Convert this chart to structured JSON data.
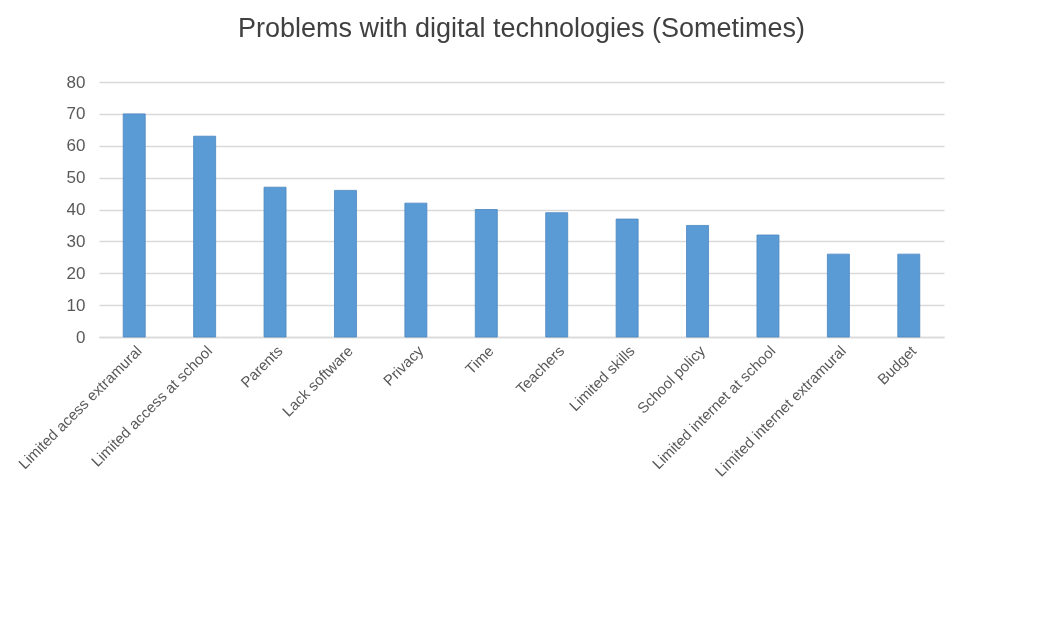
{
  "chart_data": {
    "type": "bar",
    "title": "Problems with digital technologies (Sometimes)",
    "categories": [
      "Limited acess extramural",
      "Limited access at school",
      "Parents",
      "Lack software",
      "Privacy",
      "Time",
      "Teachers",
      "Limited skills",
      "School policy",
      "Limited internet at school",
      "Limited internet extramural",
      "Budget"
    ],
    "values": [
      70,
      63,
      47,
      46,
      42,
      40,
      39,
      37,
      35,
      32,
      26,
      26
    ],
    "color": "#5b9bd5",
    "ylim": [
      0,
      80
    ],
    "yticks": [
      0,
      10,
      20,
      30,
      40,
      50,
      60,
      70,
      80
    ],
    "grid": true
  }
}
